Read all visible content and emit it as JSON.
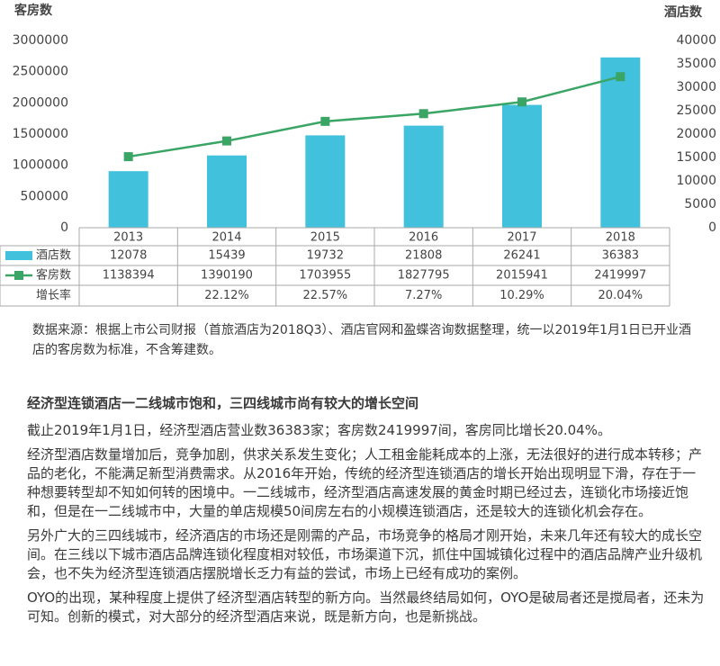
{
  "chart_data": {
    "type": "bar",
    "y_title": "客房数",
    "y2_title": "酒店数",
    "categories": [
      "2013",
      "2014",
      "2015",
      "2016",
      "2017",
      "2018"
    ],
    "ylim": [
      0,
      3000000
    ],
    "yticks": [
      0,
      500000,
      1000000,
      1500000,
      2000000,
      2500000,
      3000000
    ],
    "y2lim": [
      0,
      40000
    ],
    "y2ticks": [
      0,
      5000,
      10000,
      15000,
      20000,
      25000,
      30000,
      35000,
      40000
    ],
    "series": [
      {
        "name": "酒店数",
        "type": "bar",
        "axis": "y2",
        "color": "#41c1dc",
        "values": [
          12078,
          15439,
          19732,
          21808,
          26241,
          36383
        ]
      },
      {
        "name": "客房数",
        "type": "line",
        "color": "#3aa564",
        "values": [
          1138394,
          1390190,
          1703955,
          1827795,
          2015941,
          2419997
        ]
      }
    ],
    "growth": {
      "name": "增长率",
      "values": [
        null,
        22.12,
        22.57,
        7.27,
        10.29,
        20.04
      ],
      "value_labels": [
        null,
        "22.12%",
        "22.57%",
        "7.27%",
        "10.29%",
        "20.04%"
      ]
    }
  },
  "article": {
    "source_note": "数据来源：根据上市公司财报（首旅酒店为2018Q3）、酒店官网和盈蝶咨询数据整理，统一以2019年1月1日已开业酒店的客房数为标准，不含筹建数。",
    "heading": "经济型连锁酒店一二线城市饱和，三四线城市尚有较大的增长空间",
    "paragraphs": [
      "截止2019年1月1日，经济型酒店营业数36383家；客房数2419997间，客房同比增长20.04%。",
      "经济型酒店数量增加后，竞争加剧，供求关系发生变化；人工租金能耗成本的上涨，无法很好的进行成本转移；产品的老化，不能满足新型消费需求。从2016年开始，传统的经济型连锁酒店的增长开始出现明显下滑，存在于一种想要转型却不知如何转的困境中。一二线城市，经济型酒店高速发展的黄金时期已经过去，连锁化市场接近饱和，但是在一二线城市中，大量的单店规模50间房左右的小规模连锁酒店，还是较大的连锁化机会存在。",
      "另外广大的三四线城市，经济酒店的市场还是刚需的产品，市场竞争的格局才刚开始，未来几年还有较大的成长空间。在三线以下城市酒店品牌连锁化程度相对较低，市场渠道下沉，抓住中国城镇化过程中的酒店品牌产业升级机会，也不失为经济型连锁酒店摆脱增长乏力有益的尝试，市场上已经有成功的案例。",
      "OYO的出现，某种程度上提供了经济型酒店转型的新方向。当然最终结局如何，OYO是破局者还是搅局者，还未为可知。创新的模式，对大部分的经济型酒店来说，既是新方向，也是新挑战。"
    ]
  }
}
